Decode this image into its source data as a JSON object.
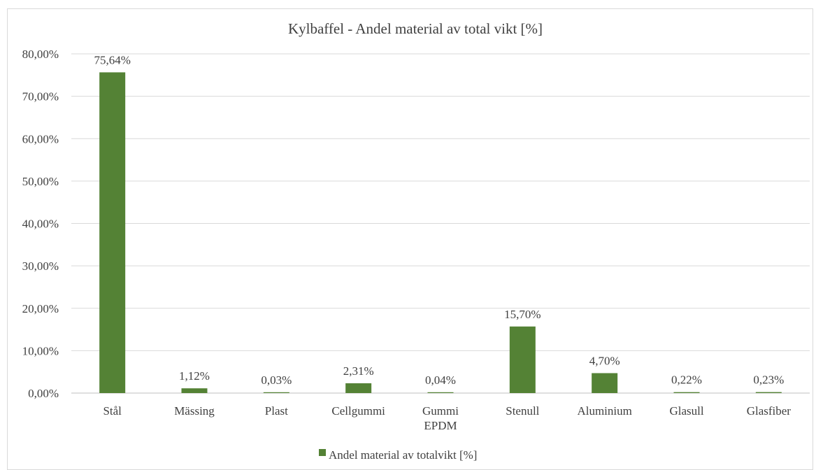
{
  "chart_data": {
    "type": "bar",
    "title": "Kylbaffel - Andel material av total vikt [%]",
    "xlabel": "",
    "ylabel": "",
    "ylim": [
      0,
      80
    ],
    "yticks": [
      "0,00%",
      "10,00%",
      "20,00%",
      "30,00%",
      "40,00%",
      "50,00%",
      "60,00%",
      "70,00%",
      "80,00%"
    ],
    "grid": true,
    "legend_position": "bottom",
    "categories": [
      [
        "Stål"
      ],
      [
        "Mässing"
      ],
      [
        "Plast"
      ],
      [
        "Cellgummi"
      ],
      [
        "Gummi",
        "EPDM"
      ],
      [
        "Stenull"
      ],
      [
        "Aluminium"
      ],
      [
        "Glasull"
      ],
      [
        "Glasfiber"
      ]
    ],
    "series": [
      {
        "name": "Andel material av totalvikt [%]",
        "color": "#548235",
        "values": [
          75.64,
          1.12,
          0.03,
          2.31,
          0.04,
          15.7,
          4.7,
          0.22,
          0.23
        ],
        "labels": [
          "75,64%",
          "1,12%",
          "0,03%",
          "2,31%",
          "0,04%",
          "15,70%",
          "4,70%",
          "0,22%",
          "0,23%"
        ]
      }
    ]
  }
}
